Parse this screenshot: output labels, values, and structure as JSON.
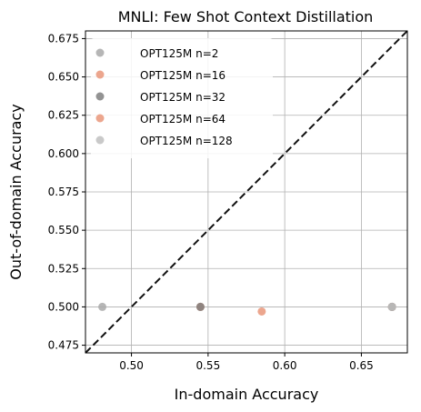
{
  "chart_data": {
    "type": "scatter",
    "title": "MNLI: Few Shot Context Distillation",
    "xlabel": "In-domain Accuracy",
    "ylabel": "Out-of-domain Accuracy",
    "xlim": [
      0.47,
      0.68
    ],
    "ylim": [
      0.47,
      0.68
    ],
    "xticks": [
      0.5,
      0.55,
      0.6,
      0.65
    ],
    "xtick_labels": [
      "0.50",
      "0.55",
      "0.60",
      "0.65"
    ],
    "yticks": [
      0.475,
      0.5,
      0.525,
      0.55,
      0.575,
      0.6,
      0.625,
      0.65,
      0.675
    ],
    "ytick_labels": [
      "0.475",
      "0.500",
      "0.525",
      "0.550",
      "0.575",
      "0.600",
      "0.625",
      "0.650",
      "0.675"
    ],
    "grid": true,
    "legend_position": "top-left",
    "reference_line": "y = x",
    "series": [
      {
        "name": "OPT125M n=2",
        "color": "#a9a9a9",
        "points": [
          {
            "x": 0.481,
            "y": 0.5
          },
          {
            "x": 0.545,
            "y": 0.5
          },
          {
            "x": 0.67,
            "y": 0.5
          }
        ]
      },
      {
        "name": "OPT125M n=16",
        "color": "#e9967a",
        "points": [
          {
            "x": 0.545,
            "y": 0.5
          },
          {
            "x": 0.67,
            "y": 0.5
          }
        ]
      },
      {
        "name": "OPT125M n=32",
        "color": "#808080",
        "points": [
          {
            "x": 0.545,
            "y": 0.5
          },
          {
            "x": 0.67,
            "y": 0.5
          }
        ]
      },
      {
        "name": "OPT125M n=64",
        "color": "#e9967a",
        "points": [
          {
            "x": 0.585,
            "y": 0.497
          }
        ]
      },
      {
        "name": "OPT125M n=128",
        "color": "#c0c0c0",
        "points": [
          {
            "x": 0.67,
            "y": 0.5
          }
        ]
      }
    ]
  }
}
